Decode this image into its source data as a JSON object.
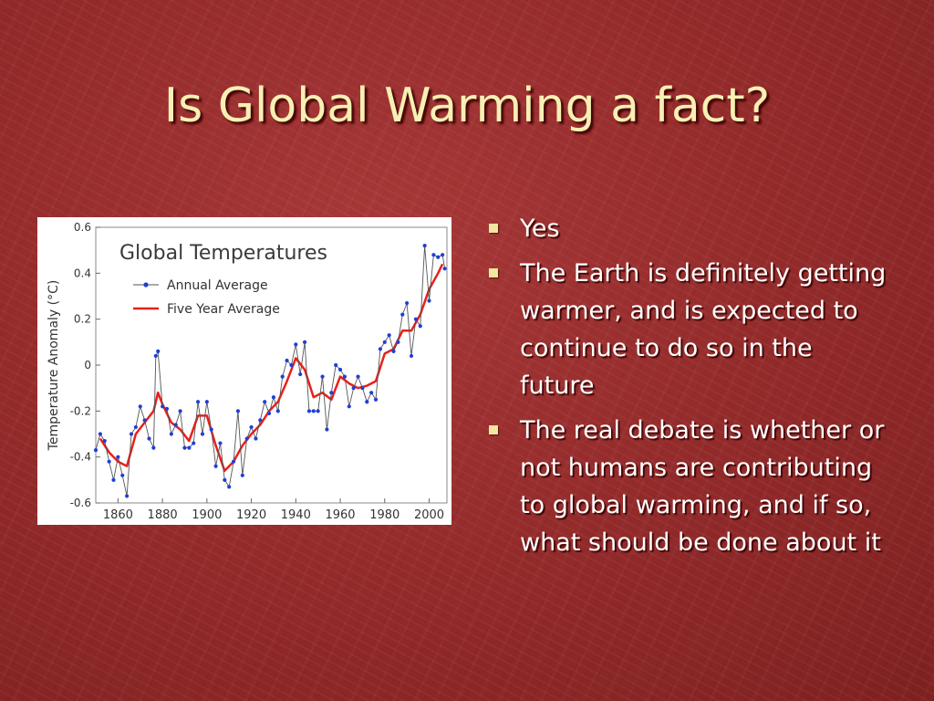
{
  "slide": {
    "title": "Is Global Warming a fact?",
    "bullets": [
      "Yes",
      "The Earth is definitely getting warmer, and is expected to continue to do so in the future",
      "The real debate is whether or not humans are contributing to global warming, and if so, what should be done about it"
    ]
  },
  "colors": {
    "title": "#f6f0b4",
    "bullet_text": "#ffffff",
    "bullet_marker": "#f3e6a0",
    "annual_series": "#1f3fd8",
    "five_year_series": "#e8201a"
  },
  "chart_data": {
    "type": "line",
    "title": "Global Temperatures",
    "xlabel": "",
    "ylabel": "Temperature Anomaly (°C)",
    "xlim": [
      1850,
      2008
    ],
    "ylim": [
      -0.6,
      0.6
    ],
    "x_ticks": [
      "1860",
      "1880",
      "1900",
      "1920",
      "1940",
      "1960",
      "1980",
      "2000"
    ],
    "y_ticks": [
      "0.6",
      "0.4",
      "0.2",
      "0",
      "-0.2",
      "-0.4",
      "-0.6"
    ],
    "legend_position": "top-left",
    "grid": false,
    "series": [
      {
        "name": "Annual Average",
        "style": "line-with-markers",
        "x": [
          1850,
          1852,
          1854,
          1856,
          1858,
          1860,
          1862,
          1864,
          1866,
          1868,
          1870,
          1872,
          1874,
          1876,
          1877,
          1878,
          1880,
          1882,
          1884,
          1886,
          1888,
          1890,
          1892,
          1894,
          1896,
          1898,
          1900,
          1902,
          1904,
          1906,
          1908,
          1910,
          1912,
          1914,
          1916,
          1918,
          1920,
          1922,
          1924,
          1926,
          1928,
          1930,
          1932,
          1934,
          1936,
          1938,
          1940,
          1942,
          1944,
          1946,
          1948,
          1950,
          1952,
          1954,
          1956,
          1958,
          1960,
          1962,
          1964,
          1966,
          1968,
          1970,
          1972,
          1974,
          1976,
          1978,
          1980,
          1982,
          1984,
          1986,
          1988,
          1990,
          1992,
          1994,
          1996,
          1998,
          2000,
          2002,
          2004,
          2006,
          2007
        ],
        "values": [
          -0.37,
          -0.3,
          -0.33,
          -0.42,
          -0.5,
          -0.4,
          -0.48,
          -0.57,
          -0.3,
          -0.27,
          -0.18,
          -0.24,
          -0.32,
          -0.36,
          0.04,
          0.06,
          -0.18,
          -0.19,
          -0.3,
          -0.26,
          -0.2,
          -0.36,
          -0.36,
          -0.34,
          -0.16,
          -0.3,
          -0.16,
          -0.28,
          -0.44,
          -0.34,
          -0.5,
          -0.53,
          -0.42,
          -0.2,
          -0.48,
          -0.32,
          -0.27,
          -0.32,
          -0.24,
          -0.16,
          -0.21,
          -0.14,
          -0.2,
          -0.05,
          0.02,
          0.0,
          0.09,
          -0.04,
          0.1,
          -0.2,
          -0.2,
          -0.2,
          -0.05,
          -0.28,
          -0.12,
          0.0,
          -0.02,
          -0.05,
          -0.18,
          -0.1,
          -0.05,
          -0.1,
          -0.16,
          -0.12,
          -0.15,
          0.07,
          0.1,
          0.13,
          0.06,
          0.1,
          0.22,
          0.27,
          0.04,
          0.2,
          0.17,
          0.52,
          0.28,
          0.48,
          0.47,
          0.48,
          0.42
        ]
      },
      {
        "name": "Five Year Average",
        "style": "line",
        "x": [
          1852,
          1856,
          1860,
          1864,
          1868,
          1872,
          1876,
          1878,
          1880,
          1884,
          1888,
          1892,
          1896,
          1900,
          1904,
          1908,
          1912,
          1916,
          1920,
          1924,
          1928,
          1932,
          1936,
          1940,
          1944,
          1948,
          1952,
          1956,
          1960,
          1964,
          1968,
          1972,
          1976,
          1980,
          1984,
          1988,
          1992,
          1996,
          2000,
          2004,
          2006
        ],
        "values": [
          -0.32,
          -0.38,
          -0.42,
          -0.44,
          -0.3,
          -0.25,
          -0.2,
          -0.12,
          -0.17,
          -0.25,
          -0.28,
          -0.33,
          -0.22,
          -0.22,
          -0.35,
          -0.46,
          -0.42,
          -0.35,
          -0.3,
          -0.26,
          -0.2,
          -0.16,
          -0.07,
          0.03,
          -0.02,
          -0.14,
          -0.12,
          -0.15,
          -0.05,
          -0.08,
          -0.1,
          -0.09,
          -0.07,
          0.05,
          0.07,
          0.15,
          0.15,
          0.22,
          0.33,
          0.4,
          0.44
        ]
      }
    ]
  }
}
